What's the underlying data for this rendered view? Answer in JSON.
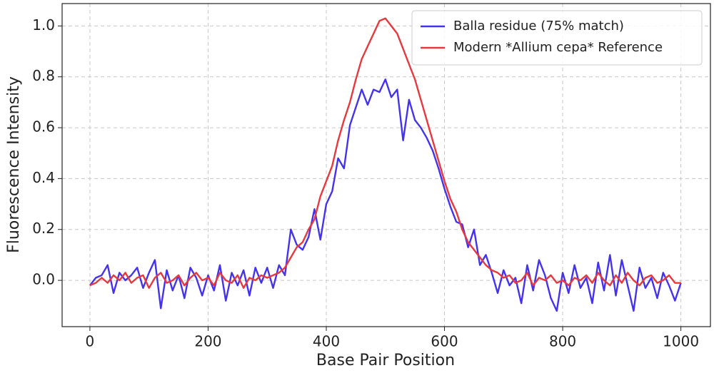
{
  "chart_data": {
    "type": "line",
    "x_label": "Base Pair Position",
    "y_label": "Fluorescence Intensity",
    "x": [
      0,
      10,
      20,
      30,
      40,
      50,
      60,
      70,
      80,
      90,
      100,
      110,
      120,
      130,
      140,
      150,
      160,
      170,
      180,
      190,
      200,
      210,
      220,
      230,
      240,
      250,
      260,
      270,
      280,
      290,
      300,
      310,
      320,
      330,
      340,
      350,
      360,
      370,
      380,
      390,
      400,
      410,
      420,
      430,
      440,
      450,
      460,
      470,
      480,
      490,
      500,
      510,
      520,
      530,
      540,
      550,
      560,
      570,
      580,
      590,
      600,
      610,
      620,
      630,
      640,
      650,
      660,
      670,
      680,
      690,
      700,
      710,
      720,
      730,
      740,
      750,
      760,
      770,
      780,
      790,
      800,
      810,
      820,
      830,
      840,
      850,
      860,
      870,
      880,
      890,
      900,
      910,
      920,
      930,
      940,
      950,
      960,
      970,
      980,
      990,
      1000
    ],
    "series": [
      {
        "name": "Balla residue (75% match)",
        "color": "#4433ee",
        "values": [
          -0.02,
          0.01,
          0.02,
          0.06,
          -0.05,
          0.03,
          0.0,
          0.02,
          0.05,
          -0.03,
          0.03,
          0.08,
          -0.11,
          0.04,
          -0.04,
          0.02,
          -0.07,
          0.05,
          0.01,
          -0.06,
          0.02,
          -0.04,
          0.06,
          -0.08,
          0.03,
          -0.02,
          0.04,
          -0.06,
          0.05,
          -0.01,
          0.05,
          -0.03,
          0.06,
          0.02,
          0.2,
          0.14,
          0.12,
          0.17,
          0.28,
          0.16,
          0.3,
          0.35,
          0.48,
          0.44,
          0.61,
          0.68,
          0.75,
          0.69,
          0.75,
          0.74,
          0.79,
          0.72,
          0.75,
          0.55,
          0.71,
          0.63,
          0.6,
          0.56,
          0.51,
          0.44,
          0.36,
          0.29,
          0.23,
          0.22,
          0.13,
          0.2,
          0.06,
          0.1,
          0.03,
          -0.05,
          0.04,
          -0.02,
          0.01,
          -0.09,
          0.06,
          -0.04,
          0.08,
          0.02,
          -0.07,
          -0.12,
          0.03,
          -0.05,
          0.06,
          -0.03,
          0.01,
          -0.09,
          0.07,
          -0.04,
          0.1,
          -0.06,
          0.08,
          -0.02,
          -0.12,
          0.05,
          -0.03,
          0.01,
          -0.07,
          0.03,
          -0.02,
          -0.08,
          -0.01
        ]
      },
      {
        "name": "Modern *Allium cepa* Reference",
        "color": "#e8383d",
        "values": [
          -0.02,
          -0.01,
          0.01,
          -0.01,
          0.02,
          0.0,
          0.03,
          -0.01,
          0.01,
          0.02,
          -0.03,
          0.01,
          0.03,
          -0.01,
          0.0,
          0.02,
          -0.02,
          0.01,
          0.03,
          0.0,
          0.01,
          -0.02,
          0.03,
          0.0,
          -0.01,
          0.02,
          -0.03,
          0.01,
          0.0,
          0.02,
          0.01,
          0.02,
          0.03,
          0.05,
          0.09,
          0.13,
          0.15,
          0.2,
          0.24,
          0.33,
          0.39,
          0.45,
          0.55,
          0.63,
          0.7,
          0.79,
          0.87,
          0.92,
          0.97,
          1.02,
          1.03,
          1.0,
          0.97,
          0.91,
          0.85,
          0.79,
          0.71,
          0.63,
          0.55,
          0.47,
          0.39,
          0.32,
          0.27,
          0.2,
          0.15,
          0.12,
          0.09,
          0.06,
          0.04,
          0.03,
          0.01,
          0.02,
          -0.01,
          0.0,
          0.03,
          -0.02,
          0.01,
          0.0,
          0.02,
          -0.01,
          0.0,
          -0.02,
          0.01,
          0.0,
          0.02,
          -0.01,
          0.03,
          0.0,
          -0.02,
          0.02,
          -0.01,
          0.03,
          0.0,
          -0.02,
          0.01,
          0.02,
          -0.01,
          0.0,
          0.02,
          -0.01,
          -0.01
        ]
      }
    ],
    "xlim": [
      -47,
      1050
    ],
    "ylim": [
      -0.182,
      1.088
    ],
    "xticks": [
      0,
      200,
      400,
      600,
      800,
      1000
    ],
    "yticks": [
      {
        "value": 0,
        "label": "0.0"
      },
      0.2,
      0.4,
      0.6,
      0.8,
      {
        "value": 1,
        "label": "1.0"
      }
    ],
    "grid": true,
    "legend": "upper right"
  }
}
